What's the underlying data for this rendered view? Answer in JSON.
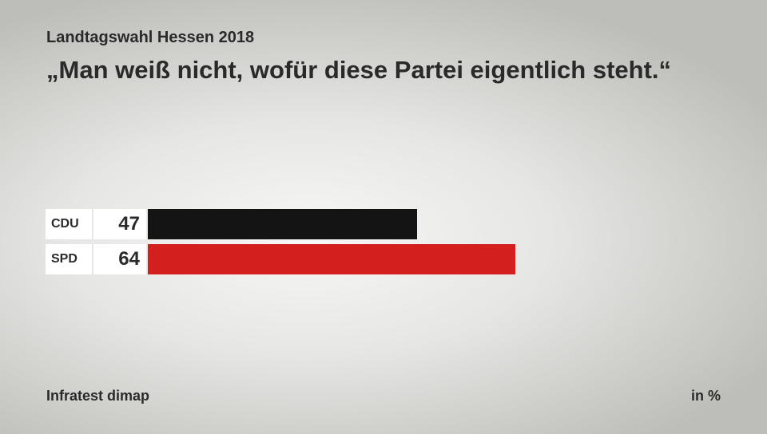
{
  "chart_data": {
    "type": "bar",
    "orientation": "horizontal",
    "subtitle": "Landtagswahl Hessen 2018",
    "title": "„Man weiß nicht, wofür diese Partei eigentlich steht.“",
    "categories": [
      "CDU",
      "SPD"
    ],
    "values": [
      47,
      64
    ],
    "colors": [
      "#141414",
      "#d41f1f"
    ],
    "source": "Infratest dimap",
    "unit": "in %"
  }
}
